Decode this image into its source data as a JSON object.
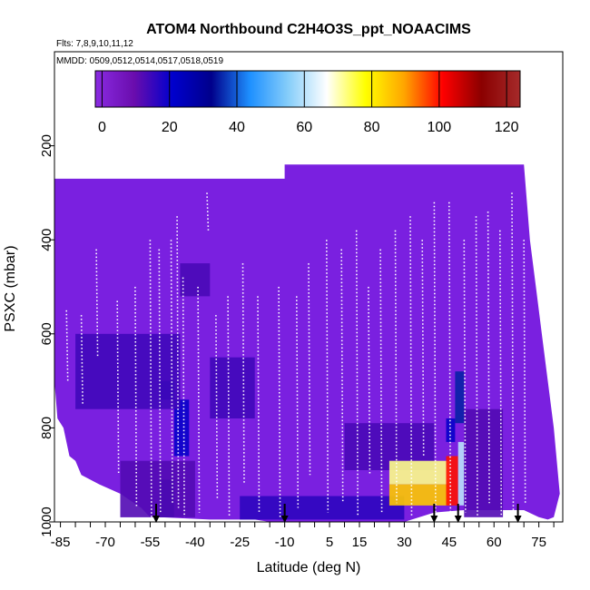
{
  "chart_data": {
    "type": "heatmap",
    "title": "ATOM4 Northbound C2H4O3S_ppt_NOAACIMS",
    "subtitle_flights": "Flts: 7,8,9,10,11,12",
    "subtitle_dates": "MMDD: 0509,0512,0514,0517,0518,0519",
    "xlabel": "Latitude (deg N)",
    "ylabel": "PSXC (mbar)",
    "x_ticks": [
      -85,
      -70,
      -55,
      -40,
      -25,
      -10,
      5,
      15,
      30,
      45,
      60,
      75
    ],
    "x_minor_step": 5,
    "xlim": [
      -87,
      83
    ],
    "y_ticks": [
      200,
      400,
      600,
      800,
      1000
    ],
    "ylim": [
      1000,
      0
    ],
    "y_reversed": true,
    "colorbar": {
      "ticks": [
        0,
        20,
        40,
        60,
        80,
        100,
        120
      ],
      "range": [
        -2,
        124
      ],
      "colors": [
        "#8a2be2",
        "#6a0dad",
        "#0000cd",
        "#00008b",
        "#1e90ff",
        "#87cefa",
        "#ffffff",
        "#ffff00",
        "#ffa500",
        "#ff0000",
        "#8b0000",
        "#a52a2a"
      ]
    },
    "background_color": "#7a20e0",
    "profile_boundary": {
      "lat": [
        -87,
        -86,
        -84,
        -82,
        -80,
        -78,
        -72,
        -65,
        -58,
        -55,
        -52,
        -35,
        -20,
        -15,
        0,
        15,
        30,
        40,
        50,
        60,
        70,
        75,
        78,
        80,
        82,
        80,
        78,
        76,
        74,
        72,
        70,
        -10,
        -10,
        -87
      ],
      "top_or_bottom_mbar": [
        700,
        780,
        800,
        860,
        870,
        900,
        920,
        940,
        970,
        990,
        990,
        995,
        995,
        1000,
        1000,
        1000,
        1000,
        980,
        975,
        975,
        975,
        990,
        995,
        990,
        940,
        800,
        700,
        600,
        500,
        400,
        240,
        240,
        270,
        270
      ]
    },
    "cells": [
      {
        "lat": [
          -52,
          -47
        ],
        "p": [
          910,
          990
        ],
        "value": 30
      },
      {
        "lat": [
          -47,
          -42
        ],
        "p": [
          740,
          860
        ],
        "value": 20
      },
      {
        "lat": [
          -52,
          -47
        ],
        "p": [
          700,
          740
        ],
        "value": 25
      },
      {
        "lat": [
          -65,
          -40
        ],
        "p": [
          870,
          990
        ],
        "value": 12
      },
      {
        "lat": [
          -80,
          -45
        ],
        "p": [
          600,
          760
        ],
        "value": 14
      },
      {
        "lat": [
          -45,
          -35
        ],
        "p": [
          450,
          520
        ],
        "value": 13
      },
      {
        "lat": [
          -35,
          -20
        ],
        "p": [
          650,
          780
        ],
        "value": 14
      },
      {
        "lat": [
          -25,
          30
        ],
        "p": [
          945,
          995
        ],
        "value": 16
      },
      {
        "lat": [
          10,
          40
        ],
        "p": [
          790,
          890
        ],
        "value": 13
      },
      {
        "lat": [
          25,
          45
        ],
        "p": [
          870,
          920
        ],
        "value": 72
      },
      {
        "lat": [
          25,
          45
        ],
        "p": [
          920,
          965
        ],
        "value": 85
      },
      {
        "lat": [
          44,
          48
        ],
        "p": [
          860,
          965
        ],
        "value": 100
      },
      {
        "lat": [
          48,
          50
        ],
        "p": [
          830,
          965
        ],
        "value": 60
      },
      {
        "lat": [
          44,
          47
        ],
        "p": [
          780,
          830
        ],
        "value": 20
      },
      {
        "lat": [
          47,
          50
        ],
        "p": [
          680,
          790
        ],
        "value": 35
      },
      {
        "lat": [
          50,
          63
        ],
        "p": [
          760,
          990
        ],
        "value": 12
      }
    ],
    "flight_tracks": [
      {
        "lat": -83,
        "p": [
          550,
          700
        ]
      },
      {
        "lat": -78,
        "p": [
          560,
          750
        ]
      },
      {
        "lat": -73,
        "p": [
          420,
          650
        ]
      },
      {
        "lat": -66,
        "p": [
          530,
          900
        ]
      },
      {
        "lat": -60,
        "p": [
          500,
          970
        ]
      },
      {
        "lat": -55,
        "p": [
          400,
          990
        ]
      },
      {
        "lat": -52,
        "p": [
          420,
          980
        ]
      },
      {
        "lat": -48,
        "p": [
          400,
          960
        ]
      },
      {
        "lat": -46,
        "p": [
          350,
          970
        ]
      },
      {
        "lat": -44,
        "p": [
          480,
          990
        ]
      },
      {
        "lat": -39,
        "p": [
          500,
          980
        ]
      },
      {
        "lat": -36,
        "p": [
          300,
          380
        ]
      },
      {
        "lat": -33,
        "p": [
          560,
          950
        ]
      },
      {
        "lat": -29,
        "p": [
          520,
          990
        ]
      },
      {
        "lat": -24,
        "p": [
          450,
          920
        ]
      },
      {
        "lat": -19,
        "p": [
          520,
          980
        ]
      },
      {
        "lat": -12,
        "p": [
          500,
          990
        ]
      },
      {
        "lat": -6,
        "p": [
          520,
          970
        ]
      },
      {
        "lat": -2,
        "p": [
          450,
          900
        ]
      },
      {
        "lat": 4,
        "p": [
          400,
          980
        ]
      },
      {
        "lat": 9,
        "p": [
          420,
          960
        ]
      },
      {
        "lat": 14,
        "p": [
          380,
          990
        ]
      },
      {
        "lat": 18,
        "p": [
          500,
          900
        ]
      },
      {
        "lat": 22,
        "p": [
          420,
          980
        ]
      },
      {
        "lat": 27,
        "p": [
          380,
          960
        ]
      },
      {
        "lat": 32,
        "p": [
          350,
          990
        ]
      },
      {
        "lat": 36,
        "p": [
          400,
          860
        ]
      },
      {
        "lat": 40,
        "p": [
          320,
          980
        ]
      },
      {
        "lat": 45,
        "p": [
          320,
          990
        ]
      },
      {
        "lat": 50,
        "p": [
          400,
          980
        ]
      },
      {
        "lat": 54,
        "p": [
          350,
          990
        ]
      },
      {
        "lat": 58,
        "p": [
          340,
          960
        ]
      },
      {
        "lat": 62,
        "p": [
          380,
          990
        ]
      },
      {
        "lat": 66,
        "p": [
          300,
          980
        ]
      },
      {
        "lat": 70,
        "p": [
          400,
          960
        ]
      }
    ],
    "arrows_lat": [
      -53,
      -10,
      40,
      48,
      68
    ],
    "colorbar_placement": "top"
  }
}
